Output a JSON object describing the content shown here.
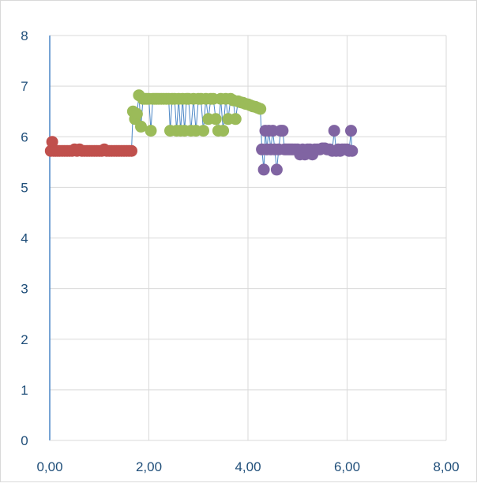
{
  "chart_data": {
    "type": "scatter",
    "xlim": [
      0,
      8
    ],
    "ylim": [
      0,
      8
    ],
    "x_ticks": [
      "0,00",
      "2,00",
      "4,00",
      "6,00",
      "8,00"
    ],
    "y_ticks": [
      "0",
      "1",
      "2",
      "3",
      "4",
      "5",
      "6",
      "7",
      "8"
    ],
    "grid": true,
    "line_color": "#4a86c5",
    "series": [
      {
        "color": "#c0504d",
        "points": [
          [
            0.02,
            5.72
          ],
          [
            0.05,
            5.9
          ],
          [
            0.08,
            5.72
          ],
          [
            0.12,
            5.72
          ],
          [
            0.16,
            5.72
          ],
          [
            0.2,
            5.72
          ],
          [
            0.25,
            5.72
          ],
          [
            0.3,
            5.72
          ],
          [
            0.35,
            5.72
          ],
          [
            0.4,
            5.72
          ],
          [
            0.45,
            5.72
          ],
          [
            0.5,
            5.75
          ],
          [
            0.55,
            5.72
          ],
          [
            0.6,
            5.75
          ],
          [
            0.65,
            5.72
          ],
          [
            0.7,
            5.72
          ],
          [
            0.75,
            5.72
          ],
          [
            0.8,
            5.72
          ],
          [
            0.85,
            5.72
          ],
          [
            0.9,
            5.72
          ],
          [
            0.95,
            5.72
          ],
          [
            1.0,
            5.72
          ],
          [
            1.05,
            5.72
          ],
          [
            1.1,
            5.75
          ],
          [
            1.15,
            5.72
          ],
          [
            1.2,
            5.72
          ],
          [
            1.25,
            5.72
          ],
          [
            1.3,
            5.72
          ],
          [
            1.35,
            5.72
          ],
          [
            1.4,
            5.72
          ],
          [
            1.45,
            5.72
          ],
          [
            1.5,
            5.72
          ],
          [
            1.55,
            5.72
          ],
          [
            1.6,
            5.72
          ],
          [
            1.65,
            5.72
          ]
        ]
      },
      {
        "color": "#9bbb59",
        "points": [
          [
            1.68,
            6.5
          ],
          [
            1.72,
            6.35
          ],
          [
            1.76,
            6.45
          ],
          [
            1.8,
            6.82
          ],
          [
            1.84,
            6.2
          ],
          [
            1.88,
            6.75
          ],
          [
            1.92,
            6.75
          ],
          [
            1.96,
            6.75
          ],
          [
            2.0,
            6.75
          ],
          [
            2.04,
            6.12
          ],
          [
            2.08,
            6.75
          ],
          [
            2.12,
            6.75
          ],
          [
            2.16,
            6.75
          ],
          [
            2.2,
            6.75
          ],
          [
            2.25,
            6.75
          ],
          [
            2.3,
            6.75
          ],
          [
            2.35,
            6.75
          ],
          [
            2.4,
            6.75
          ],
          [
            2.43,
            6.12
          ],
          [
            2.47,
            6.75
          ],
          [
            2.52,
            6.75
          ],
          [
            2.56,
            6.12
          ],
          [
            2.6,
            6.75
          ],
          [
            2.64,
            6.12
          ],
          [
            2.68,
            6.75
          ],
          [
            2.72,
            6.12
          ],
          [
            2.76,
            6.75
          ],
          [
            2.8,
            6.75
          ],
          [
            2.85,
            6.12
          ],
          [
            2.9,
            6.75
          ],
          [
            2.95,
            6.12
          ],
          [
            3.0,
            6.75
          ],
          [
            3.05,
            6.75
          ],
          [
            3.1,
            6.12
          ],
          [
            3.15,
            6.75
          ],
          [
            3.2,
            6.35
          ],
          [
            3.25,
            6.75
          ],
          [
            3.3,
            6.75
          ],
          [
            3.35,
            6.35
          ],
          [
            3.4,
            6.12
          ],
          [
            3.45,
            6.75
          ],
          [
            3.5,
            6.12
          ],
          [
            3.55,
            6.75
          ],
          [
            3.6,
            6.35
          ],
          [
            3.65,
            6.75
          ],
          [
            3.7,
            6.72
          ],
          [
            3.75,
            6.35
          ],
          [
            3.8,
            6.7
          ],
          [
            3.85,
            6.68
          ],
          [
            3.9,
            6.67
          ],
          [
            3.95,
            6.65
          ],
          [
            4.0,
            6.64
          ],
          [
            4.05,
            6.62
          ],
          [
            4.1,
            6.6
          ],
          [
            4.15,
            6.59
          ],
          [
            4.2,
            6.57
          ],
          [
            4.25,
            6.55
          ]
        ]
      },
      {
        "color": "#8064a2",
        "points": [
          [
            4.28,
            5.75
          ],
          [
            4.32,
            5.35
          ],
          [
            4.35,
            6.12
          ],
          [
            4.38,
            5.75
          ],
          [
            4.42,
            6.12
          ],
          [
            4.46,
            5.75
          ],
          [
            4.5,
            6.12
          ],
          [
            4.54,
            5.75
          ],
          [
            4.58,
            5.35
          ],
          [
            4.62,
            5.75
          ],
          [
            4.66,
            6.12
          ],
          [
            4.7,
            6.12
          ],
          [
            4.74,
            5.75
          ],
          [
            4.78,
            5.75
          ],
          [
            4.82,
            5.75
          ],
          [
            4.86,
            5.75
          ],
          [
            4.9,
            5.75
          ],
          [
            4.95,
            5.75
          ],
          [
            5.0,
            5.75
          ],
          [
            5.05,
            5.65
          ],
          [
            5.1,
            5.75
          ],
          [
            5.15,
            5.65
          ],
          [
            5.2,
            5.75
          ],
          [
            5.25,
            5.75
          ],
          [
            5.3,
            5.65
          ],
          [
            5.35,
            5.75
          ],
          [
            5.4,
            5.75
          ],
          [
            5.45,
            5.75
          ],
          [
            5.5,
            5.77
          ],
          [
            5.55,
            5.77
          ],
          [
            5.6,
            5.75
          ],
          [
            5.65,
            5.75
          ],
          [
            5.7,
            5.72
          ],
          [
            5.74,
            6.12
          ],
          [
            5.78,
            5.72
          ],
          [
            5.82,
            5.75
          ],
          [
            5.86,
            5.72
          ],
          [
            5.9,
            5.75
          ],
          [
            5.95,
            5.75
          ],
          [
            6.0,
            5.75
          ],
          [
            6.04,
            5.72
          ],
          [
            6.08,
            6.12
          ],
          [
            6.1,
            5.72
          ]
        ]
      }
    ]
  }
}
